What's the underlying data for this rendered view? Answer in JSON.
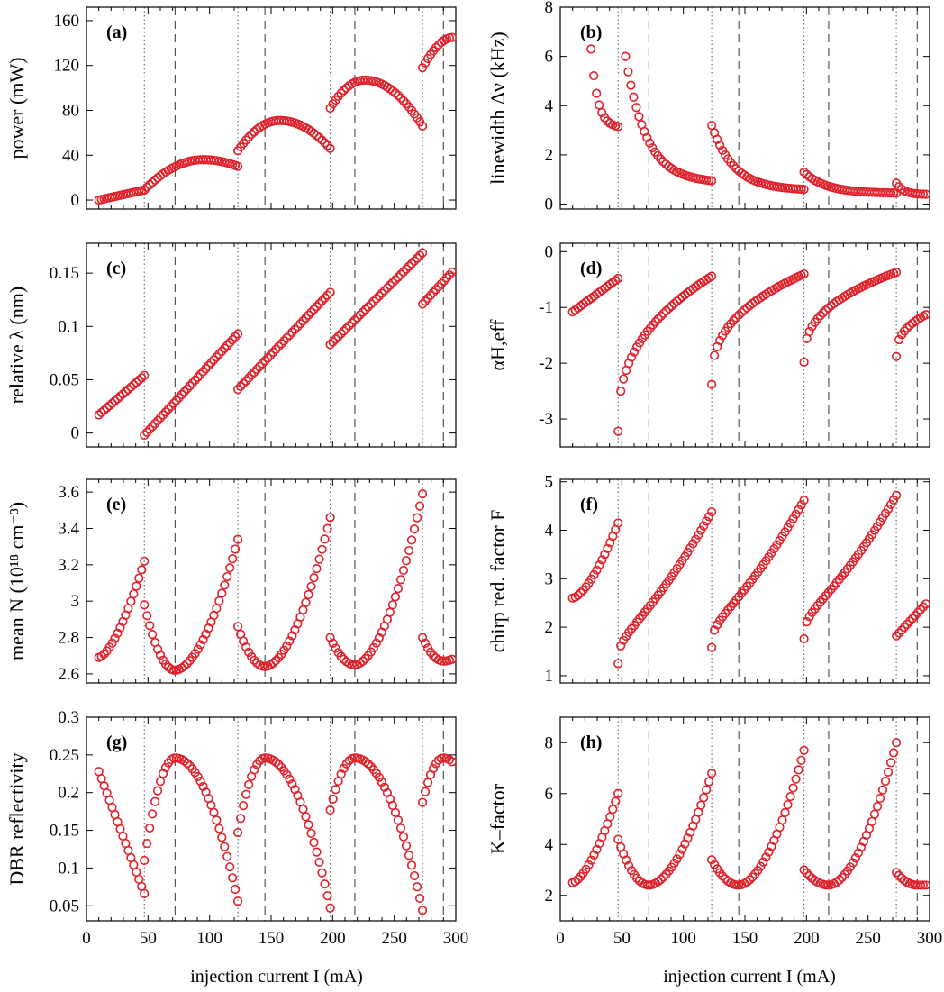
{
  "x_axis_label": "injection current I (mA)",
  "x_ticks": [
    "0",
    "50",
    "100",
    "150",
    "200",
    "250",
    "300"
  ],
  "colors": {
    "marker": "#e0202a",
    "lines": "#555555"
  },
  "chart_data": [
    {
      "panel": "(a)",
      "type": "scatter",
      "ylabel": "power (mW)",
      "xlim": [
        0,
        300
      ],
      "ylim": [
        -8,
        172
      ],
      "yticks": [
        0,
        40,
        80,
        120,
        160
      ],
      "vlines_dotted": [
        47,
        123,
        198,
        273
      ],
      "vlines_dashed": [
        72,
        145,
        218,
        290
      ],
      "series": [
        {
          "x": [
            10,
            47
          ],
          "y": [
            0,
            9
          ],
          "shape": "linear"
        },
        {
          "x": [
            47,
            123
          ],
          "y": [
            9,
            30
          ],
          "shape": "peak",
          "peak_x": 95,
          "peak_y": 36
        },
        {
          "x": [
            123,
            198
          ],
          "y": [
            44,
            46
          ],
          "shape": "peak",
          "peak_x": 157,
          "peak_y": 71
        },
        {
          "x": [
            198,
            273
          ],
          "y": [
            82,
            66
          ],
          "shape": "peak",
          "peak_x": 226,
          "peak_y": 107
        },
        {
          "x": [
            273,
            297
          ],
          "y": [
            118,
            145
          ],
          "shape": "sat"
        }
      ]
    },
    {
      "panel": "(b)",
      "type": "scatter",
      "ylabel": "linewidth Δν (kHz)",
      "xlim": [
        0,
        300
      ],
      "ylim": [
        -0.2,
        8
      ],
      "yticks": [
        0,
        2,
        4,
        6,
        8
      ],
      "vlines_dotted": [
        47,
        123,
        198,
        273
      ],
      "vlines_dashed": [
        72,
        145,
        218,
        290
      ],
      "series": [
        {
          "x": [
            25,
            47
          ],
          "y": [
            6.3,
            3.15
          ],
          "shape": "decay"
        },
        {
          "x": [
            53,
            123
          ],
          "y": [
            6.0,
            0.95
          ],
          "shape": "decay"
        },
        {
          "x": [
            123,
            198
          ],
          "y": [
            3.2,
            0.6
          ],
          "shape": "decay"
        },
        {
          "x": [
            198,
            273
          ],
          "y": [
            1.3,
            0.45
          ],
          "shape": "decay"
        },
        {
          "x": [
            273,
            297
          ],
          "y": [
            0.85,
            0.4
          ],
          "shape": "decay"
        }
      ]
    },
    {
      "panel": "(c)",
      "type": "scatter",
      "ylabel": "relative λ (nm)",
      "xlim": [
        0,
        300
      ],
      "ylim": [
        -0.013,
        0.178
      ],
      "yticks": [
        0,
        0.05,
        0.1,
        0.15
      ],
      "vlines_dotted": [
        47,
        123,
        198,
        273
      ],
      "vlines_dashed": [
        72,
        145,
        218,
        290
      ],
      "series": [
        {
          "x": [
            10,
            47
          ],
          "y": [
            0.017,
            0.054
          ],
          "shape": "linear"
        },
        {
          "x": [
            47,
            123
          ],
          "y": [
            -0.002,
            0.093
          ],
          "shape": "linear"
        },
        {
          "x": [
            123,
            198
          ],
          "y": [
            0.041,
            0.132
          ],
          "shape": "linear"
        },
        {
          "x": [
            198,
            273
          ],
          "y": [
            0.083,
            0.169
          ],
          "shape": "linear"
        },
        {
          "x": [
            273,
            297
          ],
          "y": [
            0.121,
            0.151
          ],
          "shape": "linear"
        }
      ]
    },
    {
      "panel": "(d)",
      "type": "scatter",
      "ylabel": "αH,eff",
      "xlim": [
        0,
        300
      ],
      "ylim": [
        -3.5,
        0.15
      ],
      "yticks": [
        0,
        -1,
        -2,
        -3
      ],
      "vlines_dotted": [
        47,
        123,
        198,
        273
      ],
      "vlines_dashed": [
        72,
        145,
        218,
        290
      ],
      "series": [
        {
          "x": [
            10,
            47
          ],
          "y": [
            -1.08,
            -0.48
          ],
          "shape": "linear"
        },
        {
          "x": [
            47,
            123
          ],
          "y": [
            -3.22,
            -0.44
          ],
          "shape": "recover"
        },
        {
          "x": [
            123,
            198
          ],
          "y": [
            -2.38,
            -0.4
          ],
          "shape": "recover"
        },
        {
          "x": [
            198,
            273
          ],
          "y": [
            -1.98,
            -0.37
          ],
          "shape": "recover"
        },
        {
          "x": [
            273,
            297
          ],
          "y": [
            -1.88,
            -1.13
          ],
          "shape": "recover"
        }
      ]
    },
    {
      "panel": "(e)",
      "type": "scatter",
      "ylabel": "mean N (10¹⁸ cm⁻³)",
      "xlim": [
        0,
        300
      ],
      "ylim": [
        2.55,
        3.67
      ],
      "yticks": [
        2.6,
        2.8,
        3.0,
        3.2,
        3.4,
        3.6
      ],
      "vlines_dotted": [
        47,
        123,
        198,
        273
      ],
      "vlines_dashed": [
        72,
        145,
        218,
        290
      ],
      "series": [
        {
          "x": [
            10,
            47
          ],
          "y": [
            2.69,
            3.22
          ],
          "shape": "grow"
        },
        {
          "x": [
            47,
            123
          ],
          "y": [
            2.98,
            3.34
          ],
          "shape": "valley",
          "min_x": 72,
          "min_y": 2.62
        },
        {
          "x": [
            123,
            198
          ],
          "y": [
            2.86,
            3.46
          ],
          "shape": "valley",
          "min_x": 145,
          "min_y": 2.64
        },
        {
          "x": [
            198,
            273
          ],
          "y": [
            2.8,
            3.59
          ],
          "shape": "valley",
          "min_x": 218,
          "min_y": 2.65
        },
        {
          "x": [
            273,
            297
          ],
          "y": [
            2.8,
            2.68
          ],
          "shape": "valley",
          "min_x": 290,
          "min_y": 2.67
        }
      ]
    },
    {
      "panel": "(f)",
      "type": "scatter",
      "ylabel": "chirp red. factor F",
      "xlim": [
        0,
        300
      ],
      "ylim": [
        0.85,
        5.05
      ],
      "yticks": [
        1,
        2,
        3,
        4,
        5
      ],
      "vlines_dotted": [
        47,
        123,
        198,
        273
      ],
      "vlines_dashed": [
        72,
        145,
        218,
        290
      ],
      "series": [
        {
          "x": [
            10,
            47
          ],
          "y": [
            2.6,
            4.15
          ],
          "shape": "grow"
        },
        {
          "x": [
            47,
            123
          ],
          "y": [
            1.25,
            4.38
          ],
          "shape": "scurve"
        },
        {
          "x": [
            123,
            198
          ],
          "y": [
            1.58,
            4.62
          ],
          "shape": "scurve"
        },
        {
          "x": [
            198,
            273
          ],
          "y": [
            1.76,
            4.72
          ],
          "shape": "scurve"
        },
        {
          "x": [
            273,
            297
          ],
          "y": [
            1.82,
            2.48
          ],
          "shape": "linear"
        }
      ]
    },
    {
      "panel": "(g)",
      "type": "scatter",
      "ylabel": "DBR reflectivity",
      "xlim": [
        0,
        300
      ],
      "ylim": [
        0.03,
        0.3
      ],
      "yticks": [
        0.05,
        0.1,
        0.15,
        0.2,
        0.25,
        0.3
      ],
      "vlines_dotted": [
        47,
        123,
        198,
        273
      ],
      "vlines_dashed": [
        72,
        145,
        218,
        290
      ],
      "series": [
        {
          "x": [
            10,
            47
          ],
          "y": [
            0.228,
            0.066
          ],
          "shape": "fall"
        },
        {
          "x": [
            47,
            123
          ],
          "y": [
            0.11,
            0.056
          ],
          "shape": "peak",
          "peak_x": 72,
          "peak_y": 0.246
        },
        {
          "x": [
            123,
            198
          ],
          "y": [
            0.147,
            0.047
          ],
          "shape": "peak",
          "peak_x": 145,
          "peak_y": 0.246
        },
        {
          "x": [
            198,
            273
          ],
          "y": [
            0.177,
            0.044
          ],
          "shape": "peak",
          "peak_x": 218,
          "peak_y": 0.246
        },
        {
          "x": [
            273,
            297
          ],
          "y": [
            0.187,
            0.241
          ],
          "shape": "peak",
          "peak_x": 290,
          "peak_y": 0.246
        }
      ]
    },
    {
      "panel": "(h)",
      "type": "scatter",
      "ylabel": "K–factor",
      "xlim": [
        0,
        300
      ],
      "ylim": [
        1.0,
        9.0
      ],
      "yticks": [
        2,
        4,
        6,
        8
      ],
      "vlines_dotted": [
        47,
        123,
        198,
        273
      ],
      "vlines_dashed": [
        72,
        145,
        218,
        290
      ],
      "series": [
        {
          "x": [
            10,
            47
          ],
          "y": [
            2.5,
            6.0
          ],
          "shape": "grow"
        },
        {
          "x": [
            47,
            123
          ],
          "y": [
            4.2,
            6.8
          ],
          "shape": "valley",
          "min_x": 72,
          "min_y": 2.4
        },
        {
          "x": [
            123,
            198
          ],
          "y": [
            3.4,
            7.7
          ],
          "shape": "valley",
          "min_x": 145,
          "min_y": 2.4
        },
        {
          "x": [
            198,
            273
          ],
          "y": [
            3.0,
            8.0
          ],
          "shape": "valley",
          "min_x": 218,
          "min_y": 2.4
        },
        {
          "x": [
            273,
            297
          ],
          "y": [
            2.9,
            2.4
          ],
          "shape": "valley",
          "min_x": 290,
          "min_y": 2.4
        }
      ]
    }
  ]
}
